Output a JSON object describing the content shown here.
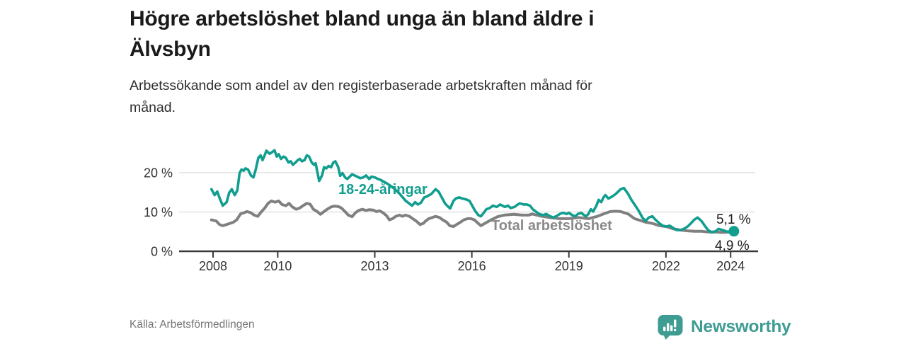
{
  "header": {
    "title_line1": "Högre arbetslöshet bland unga än bland äldre i",
    "title_line2": "Älvsbyn",
    "subtitle_line1": "Arbetssökande som andel av den registerbaserade arbetskraften månad för",
    "subtitle_line2": "månad."
  },
  "footer": {
    "source": "Källa: Arbetsförmedlingen",
    "brand": "Newsworthy"
  },
  "colors": {
    "accent_teal": "#119e8f",
    "line_gray": "#808080",
    "grid": "#dcdcdc",
    "axis": "#3a3a3a",
    "text_dark": "#1a1a1a",
    "text_muted": "#767676",
    "brand_teal": "#3f9c93"
  },
  "chart_data": {
    "type": "line",
    "xlim": [
      2006.95,
      2024.76
    ],
    "ylim": [
      0,
      28.1
    ],
    "grid": "horizontal",
    "legend_position": "inline-labels",
    "x_ticks": [
      {
        "value": 2008,
        "label": "2008"
      },
      {
        "value": 2010,
        "label": "2010"
      },
      {
        "value": 2013,
        "label": "2013"
      },
      {
        "value": 2016,
        "label": "2016"
      },
      {
        "value": 2019,
        "label": "2019"
      },
      {
        "value": 2022,
        "label": "2022"
      },
      {
        "value": 2024,
        "label": "2024"
      }
    ],
    "y_ticks": [
      {
        "value": 0,
        "label": "0 %"
      },
      {
        "value": 10,
        "label": "10 %"
      },
      {
        "value": 20,
        "label": "20 %"
      }
    ],
    "y_gridlines": [
      10,
      20
    ],
    "series": [
      {
        "name": "18-24-åringar",
        "color": "#119e8f",
        "end_label": "5,1 %",
        "end_value": 5.1,
        "points": [
          [
            2007.95,
            15.8
          ],
          [
            2008.05,
            14.3
          ],
          [
            2008.13,
            15.2
          ],
          [
            2008.22,
            13.2
          ],
          [
            2008.3,
            11.6
          ],
          [
            2008.42,
            12.5
          ],
          [
            2008.5,
            14.9
          ],
          [
            2008.58,
            15.8
          ],
          [
            2008.67,
            14.3
          ],
          [
            2008.75,
            15.5
          ],
          [
            2008.82,
            19.9
          ],
          [
            2008.88,
            20.8
          ],
          [
            2008.95,
            20.5
          ],
          [
            2009.0,
            21.1
          ],
          [
            2009.08,
            20.8
          ],
          [
            2009.17,
            19.3
          ],
          [
            2009.25,
            18.8
          ],
          [
            2009.32,
            20.8
          ],
          [
            2009.4,
            23.8
          ],
          [
            2009.47,
            24.4
          ],
          [
            2009.53,
            23.2
          ],
          [
            2009.58,
            24.1
          ],
          [
            2009.65,
            25.6
          ],
          [
            2009.75,
            24.8
          ],
          [
            2009.82,
            25.2
          ],
          [
            2009.9,
            25.7
          ],
          [
            2009.97,
            24.1
          ],
          [
            2010.03,
            24.7
          ],
          [
            2010.1,
            23.5
          ],
          [
            2010.18,
            24.1
          ],
          [
            2010.25,
            23.8
          ],
          [
            2010.33,
            22.6
          ],
          [
            2010.4,
            22.9
          ],
          [
            2010.47,
            22.0
          ],
          [
            2010.55,
            22.6
          ],
          [
            2010.62,
            23.2
          ],
          [
            2010.68,
            23.5
          ],
          [
            2010.75,
            22.9
          ],
          [
            2010.83,
            23.2
          ],
          [
            2010.9,
            24.4
          ],
          [
            2010.97,
            24.1
          ],
          [
            2011.05,
            22.6
          ],
          [
            2011.12,
            22.0
          ],
          [
            2011.17,
            22.4
          ],
          [
            2011.28,
            17.9
          ],
          [
            2011.37,
            19.3
          ],
          [
            2011.43,
            21.4
          ],
          [
            2011.5,
            21.1
          ],
          [
            2011.57,
            21.7
          ],
          [
            2011.65,
            21.4
          ],
          [
            2011.72,
            22.6
          ],
          [
            2011.78,
            22.9
          ],
          [
            2011.87,
            21.4
          ],
          [
            2011.93,
            19.2
          ],
          [
            2012.0,
            19.9
          ],
          [
            2012.08,
            18.8
          ],
          [
            2012.15,
            18.4
          ],
          [
            2012.3,
            19.6
          ],
          [
            2012.45,
            19.0
          ],
          [
            2012.55,
            18.6
          ],
          [
            2012.65,
            18.8
          ],
          [
            2012.73,
            19.3
          ],
          [
            2012.83,
            18.4
          ],
          [
            2012.9,
            19.0
          ],
          [
            2013.0,
            18.8
          ],
          [
            2013.1,
            18.4
          ],
          [
            2013.17,
            18.2
          ],
          [
            2013.35,
            17.4
          ],
          [
            2013.55,
            16.3
          ],
          [
            2013.75,
            14.8
          ],
          [
            2013.95,
            12.9
          ],
          [
            2014.15,
            11.6
          ],
          [
            2014.25,
            12.5
          ],
          [
            2014.33,
            11.9
          ],
          [
            2014.42,
            12.3
          ],
          [
            2014.53,
            13.7
          ],
          [
            2014.62,
            14.0
          ],
          [
            2014.75,
            14.6
          ],
          [
            2014.88,
            15.8
          ],
          [
            2014.97,
            15.2
          ],
          [
            2015.07,
            13.7
          ],
          [
            2015.17,
            12.2
          ],
          [
            2015.25,
            11.5
          ],
          [
            2015.33,
            10.9
          ],
          [
            2015.43,
            12.8
          ],
          [
            2015.5,
            13.4
          ],
          [
            2015.6,
            13.7
          ],
          [
            2015.72,
            13.4
          ],
          [
            2015.82,
            13.2
          ],
          [
            2015.93,
            12.8
          ],
          [
            2016.02,
            11.5
          ],
          [
            2016.1,
            10.3
          ],
          [
            2016.2,
            9.2
          ],
          [
            2016.28,
            8.9
          ],
          [
            2016.37,
            9.8
          ],
          [
            2016.45,
            10.7
          ],
          [
            2016.55,
            11.0
          ],
          [
            2016.65,
            11.6
          ],
          [
            2016.77,
            11.3
          ],
          [
            2016.87,
            11.9
          ],
          [
            2016.95,
            11.6
          ],
          [
            2017.02,
            11.3
          ],
          [
            2017.12,
            11.6
          ],
          [
            2017.2,
            11.0
          ],
          [
            2017.32,
            11.3
          ],
          [
            2017.42,
            11.9
          ],
          [
            2017.48,
            12.2
          ],
          [
            2017.6,
            11.9
          ],
          [
            2017.7,
            11.9
          ],
          [
            2017.8,
            11.6
          ],
          [
            2017.88,
            10.7
          ],
          [
            2017.98,
            10.1
          ],
          [
            2018.08,
            9.5
          ],
          [
            2018.2,
            9.2
          ],
          [
            2018.3,
            9.5
          ],
          [
            2018.42,
            8.9
          ],
          [
            2018.52,
            8.6
          ],
          [
            2018.6,
            8.9
          ],
          [
            2018.72,
            9.5
          ],
          [
            2018.82,
            9.8
          ],
          [
            2018.93,
            9.5
          ],
          [
            2019.0,
            9.8
          ],
          [
            2019.1,
            9.2
          ],
          [
            2019.2,
            8.9
          ],
          [
            2019.28,
            9.5
          ],
          [
            2019.38,
            9.8
          ],
          [
            2019.47,
            9.2
          ],
          [
            2019.53,
            8.9
          ],
          [
            2019.6,
            9.5
          ],
          [
            2019.68,
            10.7
          ],
          [
            2019.75,
            10.1
          ],
          [
            2019.85,
            11.6
          ],
          [
            2019.92,
            13.1
          ],
          [
            2020.0,
            12.5
          ],
          [
            2020.07,
            13.7
          ],
          [
            2020.13,
            14.3
          ],
          [
            2020.22,
            13.4
          ],
          [
            2020.35,
            14.0
          ],
          [
            2020.45,
            14.6
          ],
          [
            2020.6,
            15.8
          ],
          [
            2020.7,
            16.1
          ],
          [
            2020.83,
            14.6
          ],
          [
            2020.93,
            13.1
          ],
          [
            2021.03,
            11.9
          ],
          [
            2021.15,
            10.4
          ],
          [
            2021.27,
            8.6
          ],
          [
            2021.37,
            7.7
          ],
          [
            2021.47,
            8.6
          ],
          [
            2021.58,
            8.9
          ],
          [
            2021.68,
            8.0
          ],
          [
            2021.8,
            7.1
          ],
          [
            2021.9,
            6.5
          ],
          [
            2022.0,
            6.3
          ],
          [
            2022.12,
            6.5
          ],
          [
            2022.23,
            5.9
          ],
          [
            2022.33,
            5.4
          ],
          [
            2022.45,
            5.4
          ],
          [
            2022.55,
            5.7
          ],
          [
            2022.67,
            6.3
          ],
          [
            2022.77,
            7.1
          ],
          [
            2022.87,
            8.0
          ],
          [
            2022.98,
            8.6
          ],
          [
            2023.1,
            7.7
          ],
          [
            2023.2,
            6.5
          ],
          [
            2023.3,
            5.4
          ],
          [
            2023.42,
            4.8
          ],
          [
            2023.53,
            5.1
          ],
          [
            2023.63,
            5.7
          ],
          [
            2023.75,
            5.4
          ],
          [
            2023.85,
            5.1
          ],
          [
            2023.95,
            4.9
          ],
          [
            2024.05,
            5.3
          ],
          [
            2024.1,
            5.1
          ]
        ]
      },
      {
        "name": "Total arbetslöshet",
        "color": "#808080",
        "end_label": "4,9 %",
        "end_value": 4.9,
        "points": [
          [
            2007.95,
            8.0
          ],
          [
            2008.1,
            7.7
          ],
          [
            2008.2,
            6.8
          ],
          [
            2008.3,
            6.5
          ],
          [
            2008.42,
            6.8
          ],
          [
            2008.52,
            7.1
          ],
          [
            2008.63,
            7.4
          ],
          [
            2008.73,
            8.0
          ],
          [
            2008.85,
            9.5
          ],
          [
            2008.95,
            9.8
          ],
          [
            2009.05,
            10.1
          ],
          [
            2009.17,
            9.8
          ],
          [
            2009.27,
            9.2
          ],
          [
            2009.38,
            8.9
          ],
          [
            2009.5,
            10.1
          ],
          [
            2009.6,
            11.0
          ],
          [
            2009.7,
            12.2
          ],
          [
            2009.8,
            12.8
          ],
          [
            2009.92,
            12.5
          ],
          [
            2010.03,
            12.8
          ],
          [
            2010.13,
            11.9
          ],
          [
            2010.25,
            11.6
          ],
          [
            2010.35,
            12.2
          ],
          [
            2010.45,
            11.3
          ],
          [
            2010.57,
            10.7
          ],
          [
            2010.68,
            11.0
          ],
          [
            2010.78,
            11.6
          ],
          [
            2010.9,
            12.2
          ],
          [
            2011.0,
            12.0
          ],
          [
            2011.1,
            10.7
          ],
          [
            2011.22,
            10.1
          ],
          [
            2011.32,
            9.4
          ],
          [
            2011.43,
            10.1
          ],
          [
            2011.53,
            10.7
          ],
          [
            2011.65,
            11.3
          ],
          [
            2011.75,
            11.5
          ],
          [
            2011.87,
            11.4
          ],
          [
            2011.97,
            11.0
          ],
          [
            2012.08,
            10.1
          ],
          [
            2012.18,
            9.2
          ],
          [
            2012.3,
            8.8
          ],
          [
            2012.4,
            9.8
          ],
          [
            2012.5,
            10.4
          ],
          [
            2012.62,
            10.7
          ],
          [
            2012.72,
            10.4
          ],
          [
            2012.83,
            10.6
          ],
          [
            2012.95,
            10.5
          ],
          [
            2013.05,
            10.1
          ],
          [
            2013.15,
            10.3
          ],
          [
            2013.27,
            9.7
          ],
          [
            2013.37,
            9.0
          ],
          [
            2013.45,
            8.0
          ],
          [
            2013.55,
            8.3
          ],
          [
            2013.65,
            8.9
          ],
          [
            2013.77,
            9.2
          ],
          [
            2013.85,
            8.9
          ],
          [
            2013.95,
            9.2
          ],
          [
            2014.07,
            8.9
          ],
          [
            2014.17,
            8.3
          ],
          [
            2014.28,
            7.7
          ],
          [
            2014.4,
            6.8
          ],
          [
            2014.5,
            7.1
          ],
          [
            2014.57,
            7.7
          ],
          [
            2014.67,
            8.3
          ],
          [
            2014.78,
            8.6
          ],
          [
            2014.88,
            8.9
          ],
          [
            2015.0,
            8.6
          ],
          [
            2015.1,
            8.0
          ],
          [
            2015.22,
            7.4
          ],
          [
            2015.32,
            6.5
          ],
          [
            2015.43,
            6.3
          ],
          [
            2015.53,
            6.8
          ],
          [
            2015.65,
            7.4
          ],
          [
            2015.75,
            8.0
          ],
          [
            2015.87,
            8.3
          ],
          [
            2015.97,
            8.3
          ],
          [
            2016.08,
            8.0
          ],
          [
            2016.18,
            7.2
          ],
          [
            2016.28,
            6.5
          ],
          [
            2016.4,
            7.1
          ],
          [
            2016.6,
            8.0
          ],
          [
            2016.8,
            8.8
          ],
          [
            2017.0,
            9.2
          ],
          [
            2017.3,
            9.4
          ],
          [
            2017.55,
            9.2
          ],
          [
            2017.75,
            9.2
          ],
          [
            2017.87,
            9.5
          ],
          [
            2018.1,
            9.0
          ],
          [
            2018.4,
            8.6
          ],
          [
            2018.7,
            8.3
          ],
          [
            2019.0,
            8.3
          ],
          [
            2019.3,
            8.6
          ],
          [
            2019.6,
            8.3
          ],
          [
            2019.85,
            8.8
          ],
          [
            2020.07,
            9.5
          ],
          [
            2020.28,
            10.1
          ],
          [
            2020.45,
            10.2
          ],
          [
            2020.6,
            10.1
          ],
          [
            2020.83,
            9.5
          ],
          [
            2020.93,
            8.9
          ],
          [
            2021.03,
            8.3
          ],
          [
            2021.15,
            8.0
          ],
          [
            2021.37,
            7.4
          ],
          [
            2021.58,
            7.1
          ],
          [
            2021.8,
            6.5
          ],
          [
            2022.0,
            6.3
          ],
          [
            2022.23,
            5.7
          ],
          [
            2022.45,
            5.4
          ],
          [
            2022.67,
            5.2
          ],
          [
            2022.88,
            5.1
          ],
          [
            2023.1,
            5.1
          ],
          [
            2023.3,
            4.9
          ],
          [
            2023.53,
            4.9
          ],
          [
            2023.75,
            4.8
          ],
          [
            2023.95,
            4.9
          ],
          [
            2024.1,
            4.9
          ]
        ]
      }
    ]
  }
}
